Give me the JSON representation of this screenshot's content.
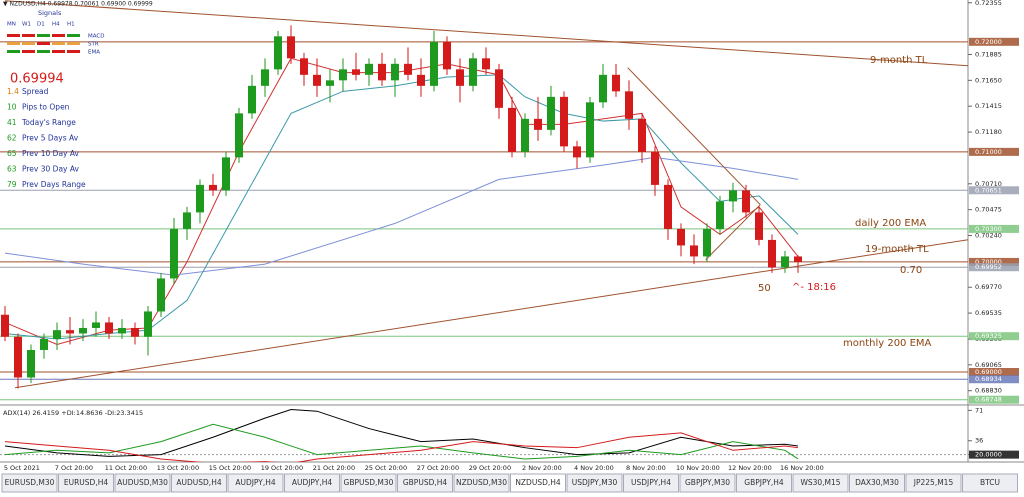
{
  "header": {
    "title": "▼ NZDUSD,H4  0.69978 0.70061 0.69900 0.69999"
  },
  "signals": {
    "title": "Signals",
    "periods": [
      "MN",
      "W1",
      "D1",
      "H4",
      "H1"
    ],
    "rows": [
      "MACD",
      "STR",
      "EMA"
    ]
  },
  "info": {
    "price": "0.69994",
    "rows": [
      [
        "1.4",
        "Spread"
      ],
      [
        "10",
        "Pips to Open"
      ],
      [
        "41",
        "Today's Range"
      ],
      [
        "62",
        "Prev 5 Days Av"
      ],
      [
        "65",
        "Prev 10 Day Av"
      ],
      [
        "63",
        "Prev 30 Day Av"
      ],
      [
        "79",
        "Prev Days Range"
      ]
    ]
  },
  "chart_data": {
    "type": "candlestick",
    "up_color": "#1e9a1e",
    "down_color": "#d41a1a",
    "ylim": [
      0.687,
      0.7238
    ],
    "yticks": [
      0.72355,
      0.71885,
      {
        "value": 0.7165,
        "label": "0.71650"
      },
      0.71415,
      {
        "value": 0.7118,
        "label": "0.71180"
      },
      {
        "value": 0.7071,
        "label": "0.70710"
      },
      0.70475,
      {
        "value": 0.7024,
        "label": "0.70240"
      },
      {
        "value": 0.6977,
        "label": "0.69770"
      },
      0.69535,
      {
        "value": 0.693,
        "label": "0.69300"
      },
      0.69065,
      {
        "value": 0.6883,
        "label": "0.68830"
      }
    ],
    "levels": [
      {
        "value": 0.72,
        "label": "0.72000",
        "color": "#a0522d"
      },
      {
        "value": 0.71,
        "label": "0.71000",
        "color": "#a0522d"
      },
      {
        "value": 0.70651,
        "label": "0.70651",
        "color": "#9aa0b0"
      },
      {
        "value": 0.703,
        "label": "0.70300",
        "color": "#7cc47c"
      },
      {
        "value": 0.7,
        "label": "0.70000",
        "color": "#a0522d"
      },
      {
        "value": 0.69952,
        "label": "0.69952",
        "color": "#9aa0b0"
      },
      {
        "value": 0.69325,
        "label": "0.69325",
        "color": "#7cc47c"
      },
      {
        "value": 0.69,
        "label": "0.69000",
        "color": "#a0522d"
      },
      {
        "value": 0.68934,
        "label": "0.68934",
        "color": "#6a7ab8"
      },
      {
        "value": 0.68748,
        "label": "0.68748",
        "color": "#7cc47c"
      }
    ],
    "dates": [
      "5 Oct 2021",
      "7 Oct 20:00",
      "11 Oct 20:00",
      "13 Oct 20:00",
      "15 Oct 20:00",
      "19 Oct 20:00",
      "21 Oct 20:00",
      "25 Oct 20:00",
      "27 Oct 20:00",
      "29 Oct 20:00",
      "2 Nov 20:00",
      "4 Nov 20:00",
      "8 Nov 20:00",
      "10 Nov 20:00",
      "12 Nov 20:00",
      "16 Nov 20:00"
    ],
    "candles": {
      "open": [
        0.6952,
        0.6932,
        0.6895,
        0.692,
        0.693,
        0.6938,
        0.6935,
        0.694,
        0.6945,
        0.6935,
        0.694,
        0.6932,
        0.6955,
        0.6985,
        0.703,
        0.7045,
        0.707,
        0.7065,
        0.7095,
        0.7135,
        0.716,
        0.7175,
        0.7205,
        0.7185,
        0.717,
        0.716,
        0.7165,
        0.7175,
        0.717,
        0.718,
        0.7165,
        0.718,
        0.717,
        0.716,
        0.72,
        0.7175,
        0.716,
        0.7185,
        0.7175,
        0.714,
        0.71,
        0.713,
        0.712,
        0.715,
        0.7105,
        0.7095,
        0.7145,
        0.717,
        0.7155,
        0.713,
        0.71,
        0.707,
        0.703,
        0.7015,
        0.7005,
        0.703,
        0.7055,
        0.7065,
        0.7045,
        0.702,
        0.6995,
        0.7005
      ],
      "high": [
        0.696,
        0.6935,
        0.6925,
        0.6935,
        0.6945,
        0.695,
        0.6948,
        0.6955,
        0.695,
        0.6948,
        0.6945,
        0.696,
        0.699,
        0.704,
        0.705,
        0.7075,
        0.708,
        0.71,
        0.714,
        0.717,
        0.7185,
        0.721,
        0.7215,
        0.719,
        0.7185,
        0.7175,
        0.7185,
        0.719,
        0.7185,
        0.719,
        0.7185,
        0.7195,
        0.7185,
        0.721,
        0.7205,
        0.7185,
        0.719,
        0.7195,
        0.718,
        0.715,
        0.7135,
        0.715,
        0.716,
        0.7155,
        0.711,
        0.715,
        0.718,
        0.718,
        0.7165,
        0.7135,
        0.7105,
        0.7075,
        0.7035,
        0.7025,
        0.7035,
        0.706,
        0.7072,
        0.707,
        0.705,
        0.7025,
        0.701,
        0.7006
      ],
      "low": [
        0.6928,
        0.6885,
        0.689,
        0.6912,
        0.692,
        0.6925,
        0.6928,
        0.6932,
        0.693,
        0.693,
        0.6925,
        0.6915,
        0.695,
        0.698,
        0.702,
        0.7035,
        0.706,
        0.706,
        0.709,
        0.713,
        0.715,
        0.717,
        0.718,
        0.716,
        0.715,
        0.7145,
        0.7155,
        0.7165,
        0.716,
        0.716,
        0.715,
        0.7165,
        0.715,
        0.7155,
        0.717,
        0.7145,
        0.7155,
        0.717,
        0.713,
        0.7095,
        0.7095,
        0.711,
        0.7115,
        0.71,
        0.7085,
        0.709,
        0.714,
        0.715,
        0.712,
        0.709,
        0.706,
        0.702,
        0.7005,
        0.6998,
        0.7,
        0.7025,
        0.7045,
        0.704,
        0.7015,
        0.699,
        0.699,
        0.699
      ],
      "close": [
        0.6932,
        0.6895,
        0.692,
        0.693,
        0.6938,
        0.6935,
        0.694,
        0.6945,
        0.6935,
        0.694,
        0.6932,
        0.6955,
        0.6985,
        0.703,
        0.7045,
        0.707,
        0.7065,
        0.7095,
        0.7135,
        0.716,
        0.7175,
        0.7205,
        0.7185,
        0.717,
        0.716,
        0.7165,
        0.7175,
        0.717,
        0.718,
        0.7165,
        0.718,
        0.717,
        0.716,
        0.72,
        0.7175,
        0.716,
        0.7185,
        0.7175,
        0.714,
        0.71,
        0.713,
        0.712,
        0.715,
        0.7105,
        0.7095,
        0.7145,
        0.717,
        0.7155,
        0.713,
        0.71,
        0.707,
        0.703,
        0.7015,
        0.7005,
        0.703,
        0.7055,
        0.7065,
        0.7045,
        0.702,
        0.6995,
        0.7005,
        0.7
      ]
    },
    "lines": [
      {
        "color": "#d03030",
        "x": [
          0,
          4,
          8,
          11,
          14,
          18,
          22,
          26,
          30,
          34,
          38,
          40,
          43,
          46,
          49,
          52,
          55,
          58,
          61
        ],
        "values": [
          0.6945,
          0.6925,
          0.6938,
          0.694,
          0.7,
          0.71,
          0.7185,
          0.7172,
          0.7172,
          0.718,
          0.717,
          0.7125,
          0.7125,
          0.713,
          0.7135,
          0.705,
          0.7025,
          0.705,
          0.7005
        ]
      },
      {
        "color": "#3a9aa8",
        "x": [
          0,
          4,
          8,
          11,
          14,
          18,
          22,
          26,
          30,
          34,
          38,
          40,
          43,
          46,
          49,
          52,
          55,
          58,
          61
        ],
        "values": [
          0.6935,
          0.693,
          0.6935,
          0.6938,
          0.6965,
          0.705,
          0.7135,
          0.7155,
          0.716,
          0.7168,
          0.717,
          0.715,
          0.7135,
          0.7128,
          0.713,
          0.709,
          0.7055,
          0.706,
          0.7025
        ]
      },
      {
        "color": "#7d8fd8",
        "x": [
          0,
          6,
          13,
          20,
          30,
          38,
          46,
          50,
          56,
          61
        ],
        "values": [
          0.7008,
          0.6998,
          0.6988,
          0.6998,
          0.7035,
          0.7075,
          0.7088,
          0.7095,
          0.7085,
          0.7075
        ]
      }
    ],
    "trendlines": [
      {
        "color": "#a0522d",
        "x": [
          0,
          74.08
        ],
        "values": [
          0.72373,
          0.71783
        ]
      },
      {
        "color": "#a0522d",
        "x": [
          0.77,
          74.08
        ],
        "values": [
          0.68857,
          0.70202
        ]
      },
      {
        "color": "#a0522d",
        "x": [
          47.9,
          58.1
        ],
        "values": [
          0.71765,
          0.7052
        ]
      },
      {
        "color": "#a0522d",
        "x": [
          53.9,
          58.1
        ],
        "values": [
          0.7002,
          0.7052
        ]
      }
    ],
    "annotations": [
      {
        "text": "9-month TL",
        "color": "#8b4513"
      },
      {
        "text": "daily 200 EMA",
        "color": "#8b4513"
      },
      {
        "text": "19-month TL",
        "color": "#8b4513"
      },
      {
        "text": "0.70",
        "color": "#8b4513"
      },
      {
        "text": "50",
        "color": "#8b4513"
      },
      {
        "text": "^- 18:16",
        "color": "#d41a1a"
      },
      {
        "text": "monthly 200 EMA",
        "color": "#8b4513"
      }
    ],
    "adx": {
      "title": "ADX(14) 26.4159 +DI:14.8636 -DI:23.3415",
      "ylim": [
        0,
        76
      ],
      "yticks": [
        71,
        36,
        {
          "value": 20,
          "label": "20.0000"
        }
      ],
      "x": [
        0,
        4,
        8,
        12,
        16,
        20,
        22,
        24,
        28,
        32,
        36,
        40,
        44,
        48,
        52,
        56,
        60,
        61
      ],
      "series": [
        {
          "color": "#000000",
          "values": [
            30,
            22,
            18,
            20,
            40,
            62,
            72,
            70,
            50,
            35,
            38,
            28,
            20,
            22,
            40,
            30,
            32,
            30
          ]
        },
        {
          "color": "#1e9a1e",
          "values": [
            20,
            25,
            22,
            35,
            55,
            40,
            30,
            20,
            25,
            30,
            22,
            15,
            18,
            25,
            20,
            35,
            25,
            15
          ]
        },
        {
          "color": "#d41a1a",
          "values": [
            35,
            30,
            25,
            15,
            10,
            12,
            10,
            15,
            20,
            25,
            35,
            30,
            28,
            40,
            45,
            25,
            30,
            28
          ]
        }
      ]
    }
  },
  "tabs": [
    "EURUSD,M30",
    "EURUSD,H4",
    "AUDUSD,M30",
    "AUDUSD,H4",
    "AUDJPY,H4",
    "AUDJPY,H4",
    "GBPUSD,M30",
    "GBPUSD,H4",
    "NZDUSD,M30",
    "NZDUSD,H4",
    "USDJPY,M30",
    "USDJPY,H4",
    "GBPJPY,M30",
    "GBPJPY,H4",
    "WS30,M15",
    "DAX30,M30",
    "JP225,M15",
    "BTCU"
  ]
}
